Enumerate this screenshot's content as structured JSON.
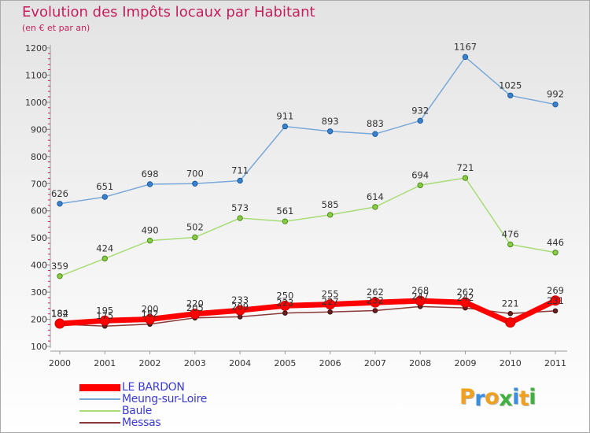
{
  "title": "Evolution des Impôts locaux par Habitant",
  "subtitle": "(en € et par an)",
  "brand": {
    "letters": [
      "P",
      "r",
      "o",
      "x",
      "i",
      "t",
      "i"
    ],
    "colors": [
      "#f0a020",
      "#3a8ee0",
      "#f0a020",
      "#40b040",
      "#3a8ee0",
      "#f0a020",
      "#40b040"
    ]
  },
  "chart_data": {
    "type": "line",
    "title": "Evolution des Impôts locaux par Habitant",
    "subtitle": "(en € et par an)",
    "xlabel": "",
    "ylabel": "",
    "x": [
      "2000",
      "2001",
      "2002",
      "2003",
      "2004",
      "2005",
      "2006",
      "2007",
      "2008",
      "2009",
      "2010",
      "2011"
    ],
    "ylim": [
      100,
      1200
    ],
    "yticks": [
      "100",
      "200",
      "300",
      "400",
      "500",
      "600",
      "700",
      "800",
      "900",
      "1000",
      "1100",
      "1200"
    ],
    "grid": false,
    "legend_position": "bottom-left",
    "series": [
      {
        "name": "LE BARDON",
        "color": "#ff0000",
        "values": [
          184,
          195,
          200,
          220,
          233,
          250,
          255,
          262,
          268,
          262,
          188,
          269
        ],
        "labels": [
          "184",
          "195",
          "200",
          "220",
          "233",
          "250",
          "255",
          "262",
          "268",
          "262",
          "",
          "269"
        ]
      },
      {
        "name": "Meung-sur-Loire",
        "color": "#7aa8d8",
        "values": [
          626,
          651,
          698,
          700,
          711,
          911,
          893,
          883,
          932,
          1167,
          1025,
          992
        ],
        "labels": [
          "626",
          "651",
          "698",
          "700",
          "711",
          "911",
          "893",
          "883",
          "932",
          "1167",
          "1025",
          "992"
        ]
      },
      {
        "name": "Baule",
        "color": "#a8dc78",
        "values": [
          359,
          424,
          490,
          502,
          573,
          561,
          585,
          614,
          694,
          721,
          476,
          446
        ],
        "labels": [
          "359",
          "424",
          "490",
          "502",
          "573",
          "561",
          "585",
          "614",
          "694",
          "721",
          "476",
          "446"
        ]
      },
      {
        "name": "Messas",
        "color": "#8b3a3a",
        "values": [
          182,
          175,
          182,
          205,
          209,
          223,
          227,
          232,
          247,
          242,
          221,
          231
        ],
        "labels": [
          "182",
          "175",
          "182",
          "205",
          "209",
          "223",
          "227",
          "232",
          "247",
          "242",
          "221",
          "231"
        ]
      }
    ]
  }
}
